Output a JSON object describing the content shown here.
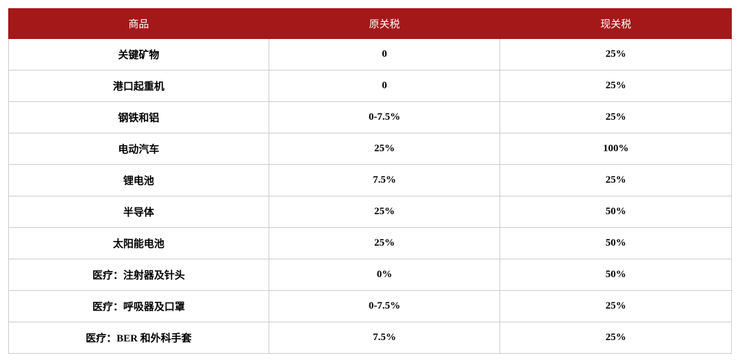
{
  "table": {
    "type": "table",
    "header_bg": "#a5181a",
    "header_text_color": "#ffffff",
    "cell_border_color": "#cccccc",
    "cell_text_color": "#000000",
    "background_color": "#ffffff",
    "header_fontsize": 15,
    "cell_fontsize": 15,
    "columns": [
      {
        "label": "商品",
        "width_pct": 36,
        "align": "center"
      },
      {
        "label": "原关税",
        "width_pct": 32,
        "align": "center"
      },
      {
        "label": "现关税",
        "width_pct": 32,
        "align": "center"
      }
    ],
    "rows": [
      [
        "关键矿物",
        "0",
        "25%"
      ],
      [
        "港口起重机",
        "0",
        "25%"
      ],
      [
        "钢铁和铝",
        "0-7.5%",
        "25%"
      ],
      [
        "电动汽车",
        "25%",
        "100%"
      ],
      [
        "锂电池",
        "7.5%",
        "25%"
      ],
      [
        "半导体",
        "25%",
        "50%"
      ],
      [
        "太阳能电池",
        "25%",
        "50%"
      ],
      [
        "医疗：注射器及针头",
        "0%",
        "50%"
      ],
      [
        "医疗：呼吸器及口罩",
        "0-7.5%",
        "25%"
      ],
      [
        "医疗：BER 和外科手套",
        "7.5%",
        "25%"
      ]
    ]
  }
}
